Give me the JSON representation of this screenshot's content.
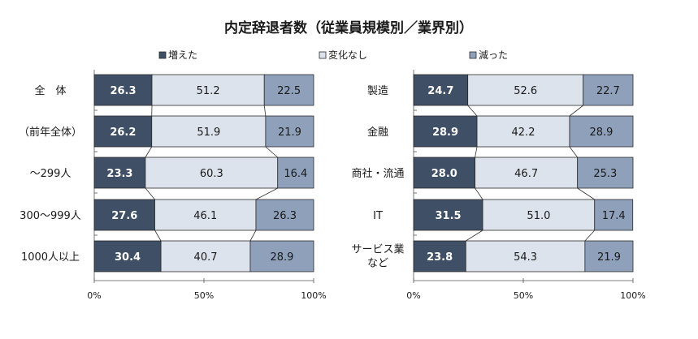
{
  "title": "内定辞退者数（従業員規模別／業界別）",
  "legend": [
    {
      "label": "増えた",
      "color": "#3f4f66"
    },
    {
      "label": "変化なし",
      "color": "#dde3ec"
    },
    {
      "label": "減った",
      "color": "#8fa0bb"
    }
  ],
  "chart_data": [
    {
      "type": "bar",
      "stacked": "100%",
      "orientation": "horizontal",
      "categories": [
        "全　体",
        "（前年全体）",
        "～299人",
        "300～999人",
        "1000人以上"
      ],
      "series": [
        {
          "name": "増えた",
          "values": [
            26.3,
            26.2,
            23.3,
            27.6,
            30.4
          ]
        },
        {
          "name": "変化なし",
          "values": [
            51.2,
            51.9,
            60.3,
            46.1,
            40.7
          ]
        },
        {
          "name": "減った",
          "values": [
            22.5,
            21.9,
            16.4,
            26.3,
            28.9
          ]
        }
      ],
      "x_ticks": [
        "0%",
        "50%",
        "100%"
      ],
      "xlim": [
        0,
        100
      ],
      "series_lines": true
    },
    {
      "type": "bar",
      "stacked": "100%",
      "orientation": "horizontal",
      "categories": [
        "製造",
        "金融",
        "商社・流通",
        "IT",
        [
          "サービス業",
          "など"
        ]
      ],
      "series": [
        {
          "name": "増えた",
          "values": [
            24.7,
            28.9,
            28.0,
            31.5,
            23.8
          ]
        },
        {
          "name": "変化なし",
          "values": [
            52.6,
            42.2,
            46.7,
            51.0,
            54.3
          ]
        },
        {
          "name": "減った",
          "values": [
            22.7,
            28.9,
            25.3,
            17.4,
            21.9
          ]
        }
      ],
      "x_ticks": [
        "0%",
        "50%",
        "100%"
      ],
      "xlim": [
        0,
        100
      ],
      "series_lines": true
    }
  ]
}
